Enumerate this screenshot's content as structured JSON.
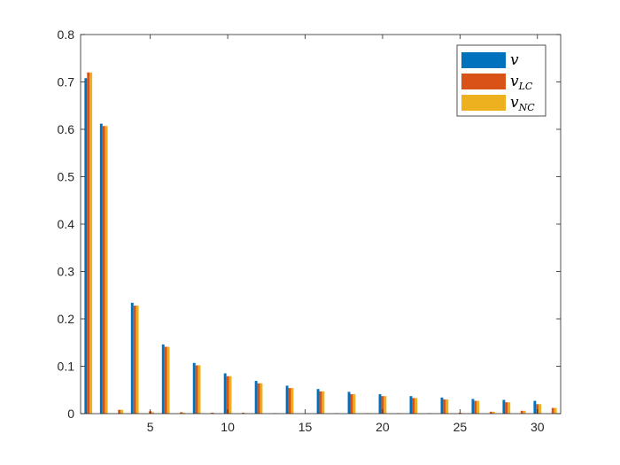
{
  "chart_data": {
    "type": "bar",
    "title": "",
    "xlabel": "",
    "ylabel": "",
    "xlim": [
      0.5,
      31.5
    ],
    "ylim": [
      0,
      0.8
    ],
    "grid": false,
    "legend_position": "top-right",
    "x": [
      1,
      2,
      3,
      4,
      5,
      6,
      7,
      8,
      9,
      10,
      11,
      12,
      13,
      14,
      15,
      16,
      17,
      18,
      19,
      20,
      21,
      22,
      23,
      24,
      25,
      26,
      27,
      28,
      29,
      30,
      31
    ],
    "x_ticks": [
      5,
      10,
      15,
      20,
      25,
      30
    ],
    "x_tick_labels": [
      "5",
      "10",
      "15",
      "20",
      "25",
      "30"
    ],
    "y_ticks": [
      0,
      0.1,
      0.2,
      0.3,
      0.4,
      0.5,
      0.6,
      0.7,
      0.8
    ],
    "y_tick_labels": [
      "0",
      "0.1",
      "0.2",
      "0.3",
      "0.4",
      "0.5",
      "0.6",
      "0.7",
      "0.8"
    ],
    "series": [
      {
        "name": "v",
        "color": "#0072BD",
        "values": [
          0.708,
          0.612,
          0,
          0.234,
          0,
          0.146,
          0,
          0.107,
          0,
          0.085,
          0,
          0.069,
          0,
          0.059,
          0,
          0.052,
          0,
          0.046,
          0,
          0.041,
          0,
          0.037,
          0,
          0.034,
          0,
          0.031,
          0,
          0.029,
          0,
          0.027,
          0
        ]
      },
      {
        "name": "v_LC",
        "color": "#D95319",
        "values": [
          0.72,
          0.607,
          0.008,
          0.228,
          0.005,
          0.141,
          0.003,
          0.102,
          0.002,
          0.079,
          0.002,
          0.064,
          0.001,
          0.054,
          0.001,
          0.047,
          0.001,
          0.041,
          0.001,
          0.037,
          0.001,
          0.033,
          0.001,
          0.03,
          0.002,
          0.027,
          0.004,
          0.024,
          0.006,
          0.02,
          0.012
        ]
      },
      {
        "name": "v_NC",
        "color": "#EDB120",
        "values": [
          0.72,
          0.607,
          0.008,
          0.228,
          0.003,
          0.141,
          0.002,
          0.102,
          0.001,
          0.079,
          0.001,
          0.064,
          0.001,
          0.054,
          0.001,
          0.047,
          0.001,
          0.041,
          0.001,
          0.037,
          0.001,
          0.033,
          0.001,
          0.03,
          0.001,
          0.027,
          0.004,
          0.024,
          0.006,
          0.02,
          0.012
        ]
      }
    ],
    "legend": [
      {
        "symbol": "v",
        "subscript": "",
        "color": "#0072BD"
      },
      {
        "symbol": "v",
        "subscript": "LC",
        "color": "#D95319"
      },
      {
        "symbol": "v",
        "subscript": "NC",
        "color": "#EDB120"
      }
    ]
  }
}
